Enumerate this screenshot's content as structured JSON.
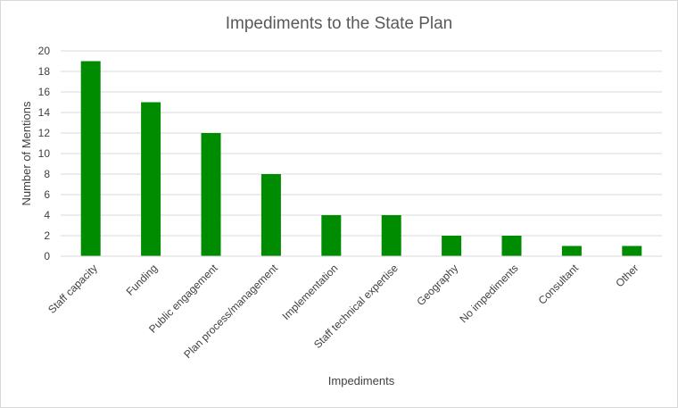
{
  "chart_data": {
    "type": "bar",
    "title": "Impediments to the State Plan",
    "xlabel": "Impediments",
    "ylabel": "Number of Mentions",
    "categories": [
      "Staff capacity",
      "Funding",
      "Public engagement",
      "Plan process/management",
      "Implementation",
      "Staff technical expertise",
      "Geography",
      "No impediments",
      "Consultant",
      "Other"
    ],
    "values": [
      19,
      15,
      12,
      8,
      4,
      4,
      2,
      2,
      1,
      1
    ],
    "ylim": [
      0,
      20
    ],
    "yticks": [
      "0",
      "2",
      "4",
      "6",
      "8",
      "10",
      "12",
      "14",
      "16",
      "18",
      "20"
    ],
    "grid": true,
    "legend": "none",
    "bar_color": "#008c00",
    "grid_color": "#d9d9d9"
  }
}
